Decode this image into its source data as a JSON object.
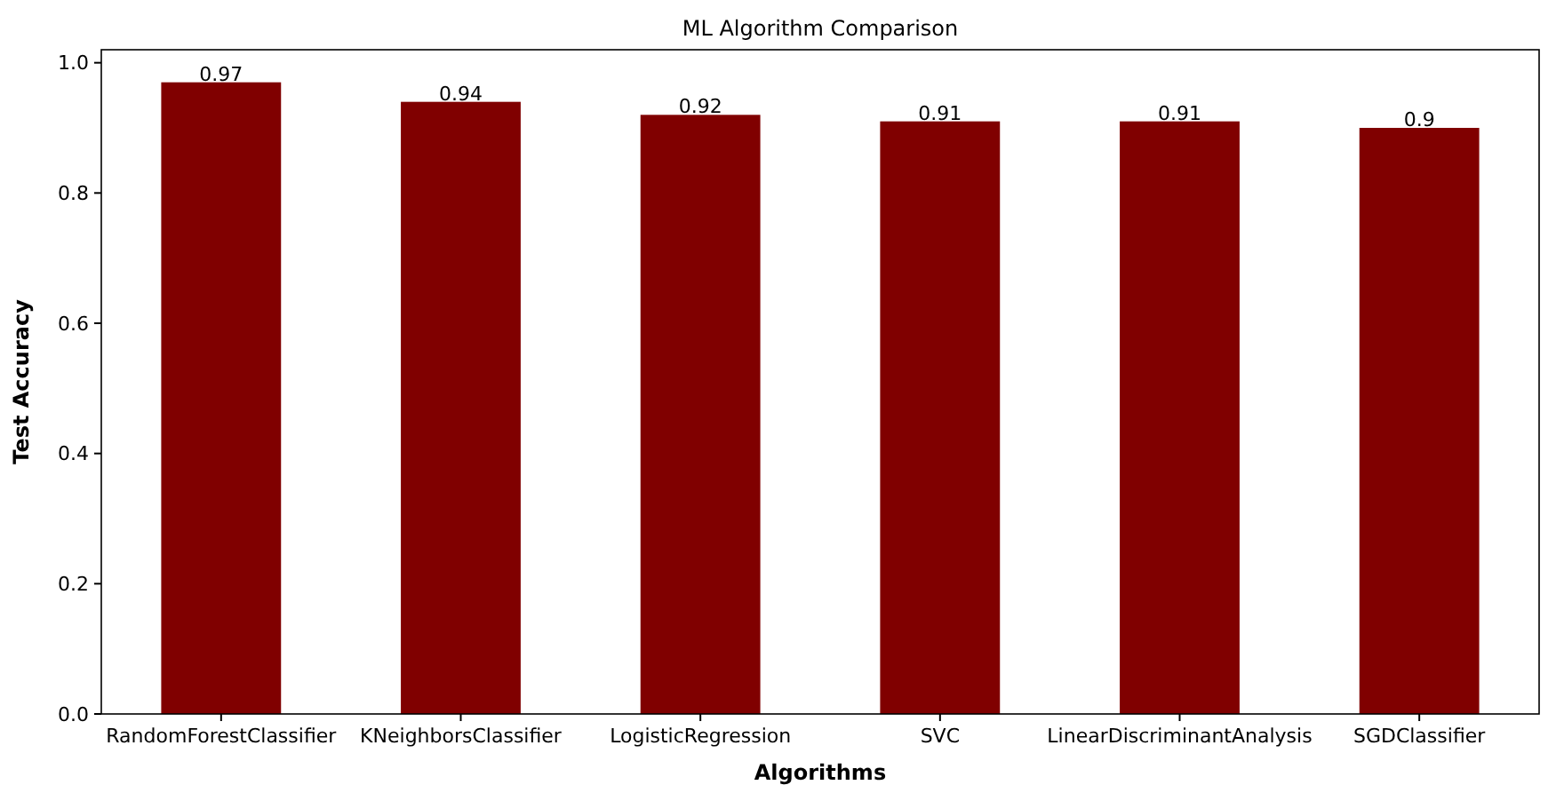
{
  "chart_data": {
    "type": "bar",
    "title": "ML Algorithm Comparison",
    "xlabel": "Algorithms",
    "ylabel": "Test Accuracy",
    "categories": [
      "RandomForestClassifier",
      "KNeighborsClassifier",
      "LogisticRegression",
      "SVC",
      "LinearDiscriminantAnalysis",
      "SGDClassifier"
    ],
    "values": [
      0.97,
      0.94,
      0.92,
      0.91,
      0.91,
      0.9
    ],
    "color": "#800000",
    "data_labels": true,
    "ylim": [
      0,
      1.02
    ],
    "yticks": [
      {
        "value": 0,
        "label": "0.0"
      },
      0.2,
      0.4,
      0.6,
      0.8,
      {
        "value": 1,
        "label": "1.0"
      }
    ],
    "grid": false
  }
}
